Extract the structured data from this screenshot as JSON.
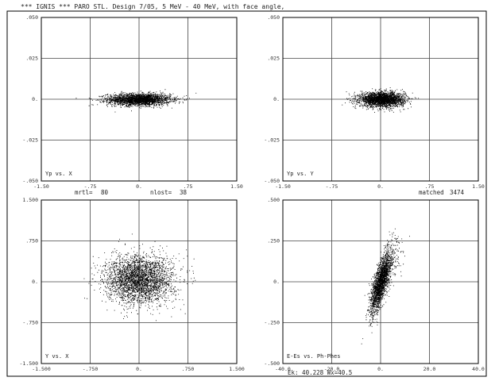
{
  "header": {
    "title": "*** IGNIS *** PARO STL. Design 7/05, 5 MeV - 40 MeV, with face angle,"
  },
  "info": {
    "left_label": "mrtl=",
    "left_value": "80",
    "middle_label": "nlost=",
    "middle_value": "38",
    "right_label": "matched",
    "right_value": "3474"
  },
  "footer": {
    "bottom_right": "Ek: 40.228 Wx=40.5"
  },
  "colors": {
    "axes": "#000000",
    "grid": "#444444",
    "points": "#000000"
  },
  "chart_data": [
    {
      "type": "scatter",
      "panel": "top-left",
      "annotation": "Yp vs. X",
      "xlim": [
        -1.5,
        1.5
      ],
      "ylim": [
        -0.05,
        0.05
      ],
      "x_ticks": [
        -1.5,
        -0.75,
        0,
        0.75,
        1.5
      ],
      "y_ticks": [
        -0.05,
        -0.025,
        0,
        0.025,
        0.05
      ],
      "x_tick_labels": [
        "-1.50",
        "-.75",
        "0.",
        ".75",
        "1.50"
      ],
      "y_tick_labels": [
        "-.050",
        "-.025",
        "0.",
        ".025",
        ".050"
      ],
      "grid": true,
      "distribution": {
        "shape": "ellipse",
        "center": [
          0,
          0
        ],
        "sigma": [
          0.24,
          0.0018
        ],
        "count": 2600
      }
    },
    {
      "type": "scatter",
      "panel": "top-right",
      "annotation": "Yp vs. Y",
      "xlim": [
        -1.5,
        1.5
      ],
      "ylim": [
        -0.05,
        0.05
      ],
      "x_ticks": [
        -1.5,
        -0.75,
        0,
        0.75,
        1.5
      ],
      "y_ticks": [
        -0.05,
        -0.025,
        0,
        0.025,
        0.05
      ],
      "x_tick_labels": [
        "-1.50",
        "-.75",
        "0.",
        ".75",
        "1.50"
      ],
      "y_tick_labels": [
        "-.050",
        "-.025",
        "0.",
        ".025",
        ".050"
      ],
      "grid": true,
      "distribution": {
        "shape": "ellipse",
        "center": [
          0.02,
          0
        ],
        "sigma": [
          0.17,
          0.0022
        ],
        "count": 2600
      }
    },
    {
      "type": "scatter",
      "panel": "bottom-left",
      "annotation": "Y vs. X",
      "xlim": [
        -1.5,
        1.5
      ],
      "ylim": [
        -1.5,
        1.5
      ],
      "x_ticks": [
        -1.5,
        -0.75,
        0,
        0.75,
        1.5
      ],
      "y_ticks": [
        -1.5,
        -0.75,
        0,
        0.75,
        1.5
      ],
      "x_tick_labels": [
        "-1.500",
        "-.750",
        "0.",
        ".750",
        "1.500"
      ],
      "y_tick_labels": [
        "-1.500",
        "-.750",
        "0.",
        ".750",
        "1.500"
      ],
      "grid": true,
      "distribution": {
        "shape": "disc",
        "center": [
          0,
          0.05
        ],
        "sigma": [
          0.26,
          0.22
        ],
        "count": 3000
      }
    },
    {
      "type": "scatter",
      "panel": "bottom-right",
      "annotation": "E-Es vs. Ph-Phes",
      "xlim": [
        -40,
        40
      ],
      "ylim": [
        -0.5,
        0.5
      ],
      "x_ticks": [
        -40,
        -20,
        0,
        20,
        40
      ],
      "y_ticks": [
        -0.5,
        -0.25,
        0,
        0.25,
        0.5
      ],
      "x_tick_labels": [
        "-40.0",
        "-20.0",
        "0.",
        "20.0",
        "40.0"
      ],
      "y_tick_labels": [
        "-.500",
        "-.250",
        "0.",
        ".250",
        ".500"
      ],
      "grid": true,
      "distribution": {
        "shape": "tilted-ellipse",
        "center": [
          0,
          0
        ],
        "major_sigma": 3.2,
        "minor_sigma": 1.4,
        "count": 2400
      }
    }
  ]
}
